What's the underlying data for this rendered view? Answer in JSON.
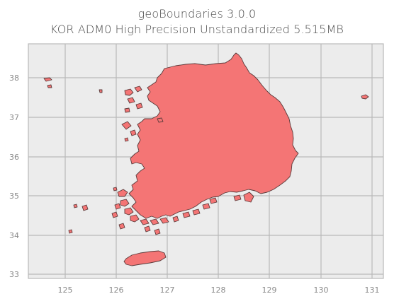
{
  "title": {
    "line1": "geoBoundaries 3.0.0",
    "line2": "KOR ADM0 High Precision Unstandardized 5.515MB"
  },
  "map": {
    "fill_color": "#f47575",
    "edge_color": "#5a3a3a",
    "background": "#ececec",
    "grid_color": "#b9b9b9",
    "grid": true
  },
  "axes": {
    "x_ticks": [
      "125",
      "126",
      "127",
      "128",
      "129",
      "130",
      "131"
    ],
    "y_ticks": [
      "38",
      "37",
      "36",
      "35",
      "34",
      "33"
    ],
    "x_range": [
      124.3,
      131.2
    ],
    "y_range": [
      32.9,
      38.85
    ]
  }
}
